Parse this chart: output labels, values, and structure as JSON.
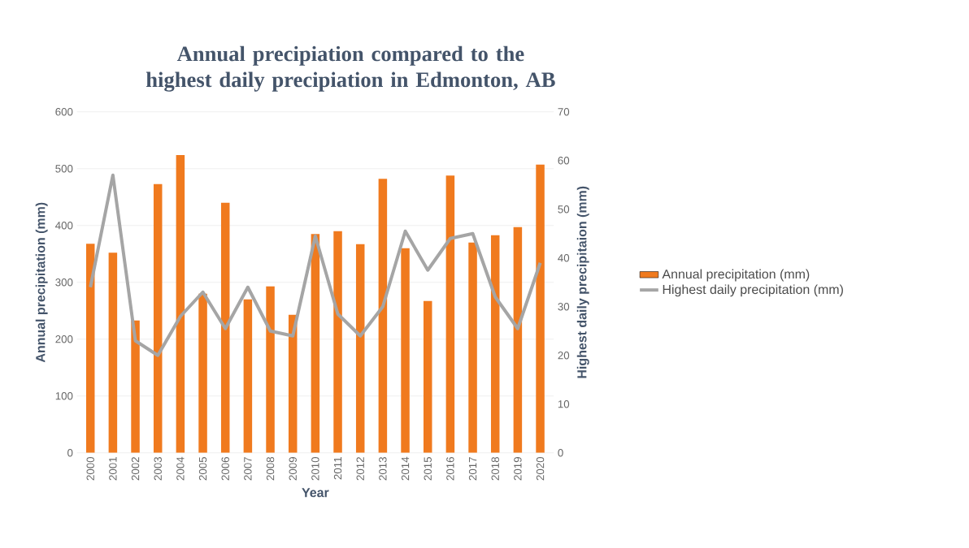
{
  "chart_data": {
    "type": "bar",
    "title": "Annual precipiation compared to the highest daily precipiation in Edmonton, AB",
    "xlabel": "Year",
    "ylabel": "Annual precipitation (mm)",
    "y2label": "Highest daily precipitaion (mm)",
    "categories": [
      "2000",
      "2001",
      "2002",
      "2003",
      "2004",
      "2005",
      "2006",
      "2007",
      "2008",
      "2009",
      "2010",
      "2011",
      "2012",
      "2013",
      "2014",
      "2015",
      "2016",
      "2017",
      "2018",
      "2019",
      "2020"
    ],
    "series": [
      {
        "name": "Annual precipitation (mm)",
        "color": "#f07a1e",
        "values": [
          368,
          352,
          233,
          473,
          524,
          280,
          440,
          270,
          293,
          243,
          385,
          390,
          367,
          482,
          360,
          267,
          488,
          370,
          383,
          397,
          507
        ]
      },
      {
        "name": "Highest daily precipitation (mm)",
        "type": "line",
        "axis": "y2",
        "color": "#a5a5a5",
        "values": [
          34,
          57,
          23,
          20,
          28,
          33,
          25.5,
          34,
          25,
          24,
          44.5,
          28.5,
          24,
          30,
          45.5,
          37.5,
          44,
          45,
          32,
          25.5,
          39
        ]
      }
    ],
    "ylim": [
      0,
      600
    ],
    "yticks": [
      0,
      100,
      200,
      300,
      400,
      500,
      600
    ],
    "y2lim": [
      0,
      70
    ],
    "y2ticks": [
      0,
      10,
      20,
      30,
      40,
      50,
      60,
      70
    ],
    "grid": "y",
    "legend": "right",
    "marker": "none"
  }
}
